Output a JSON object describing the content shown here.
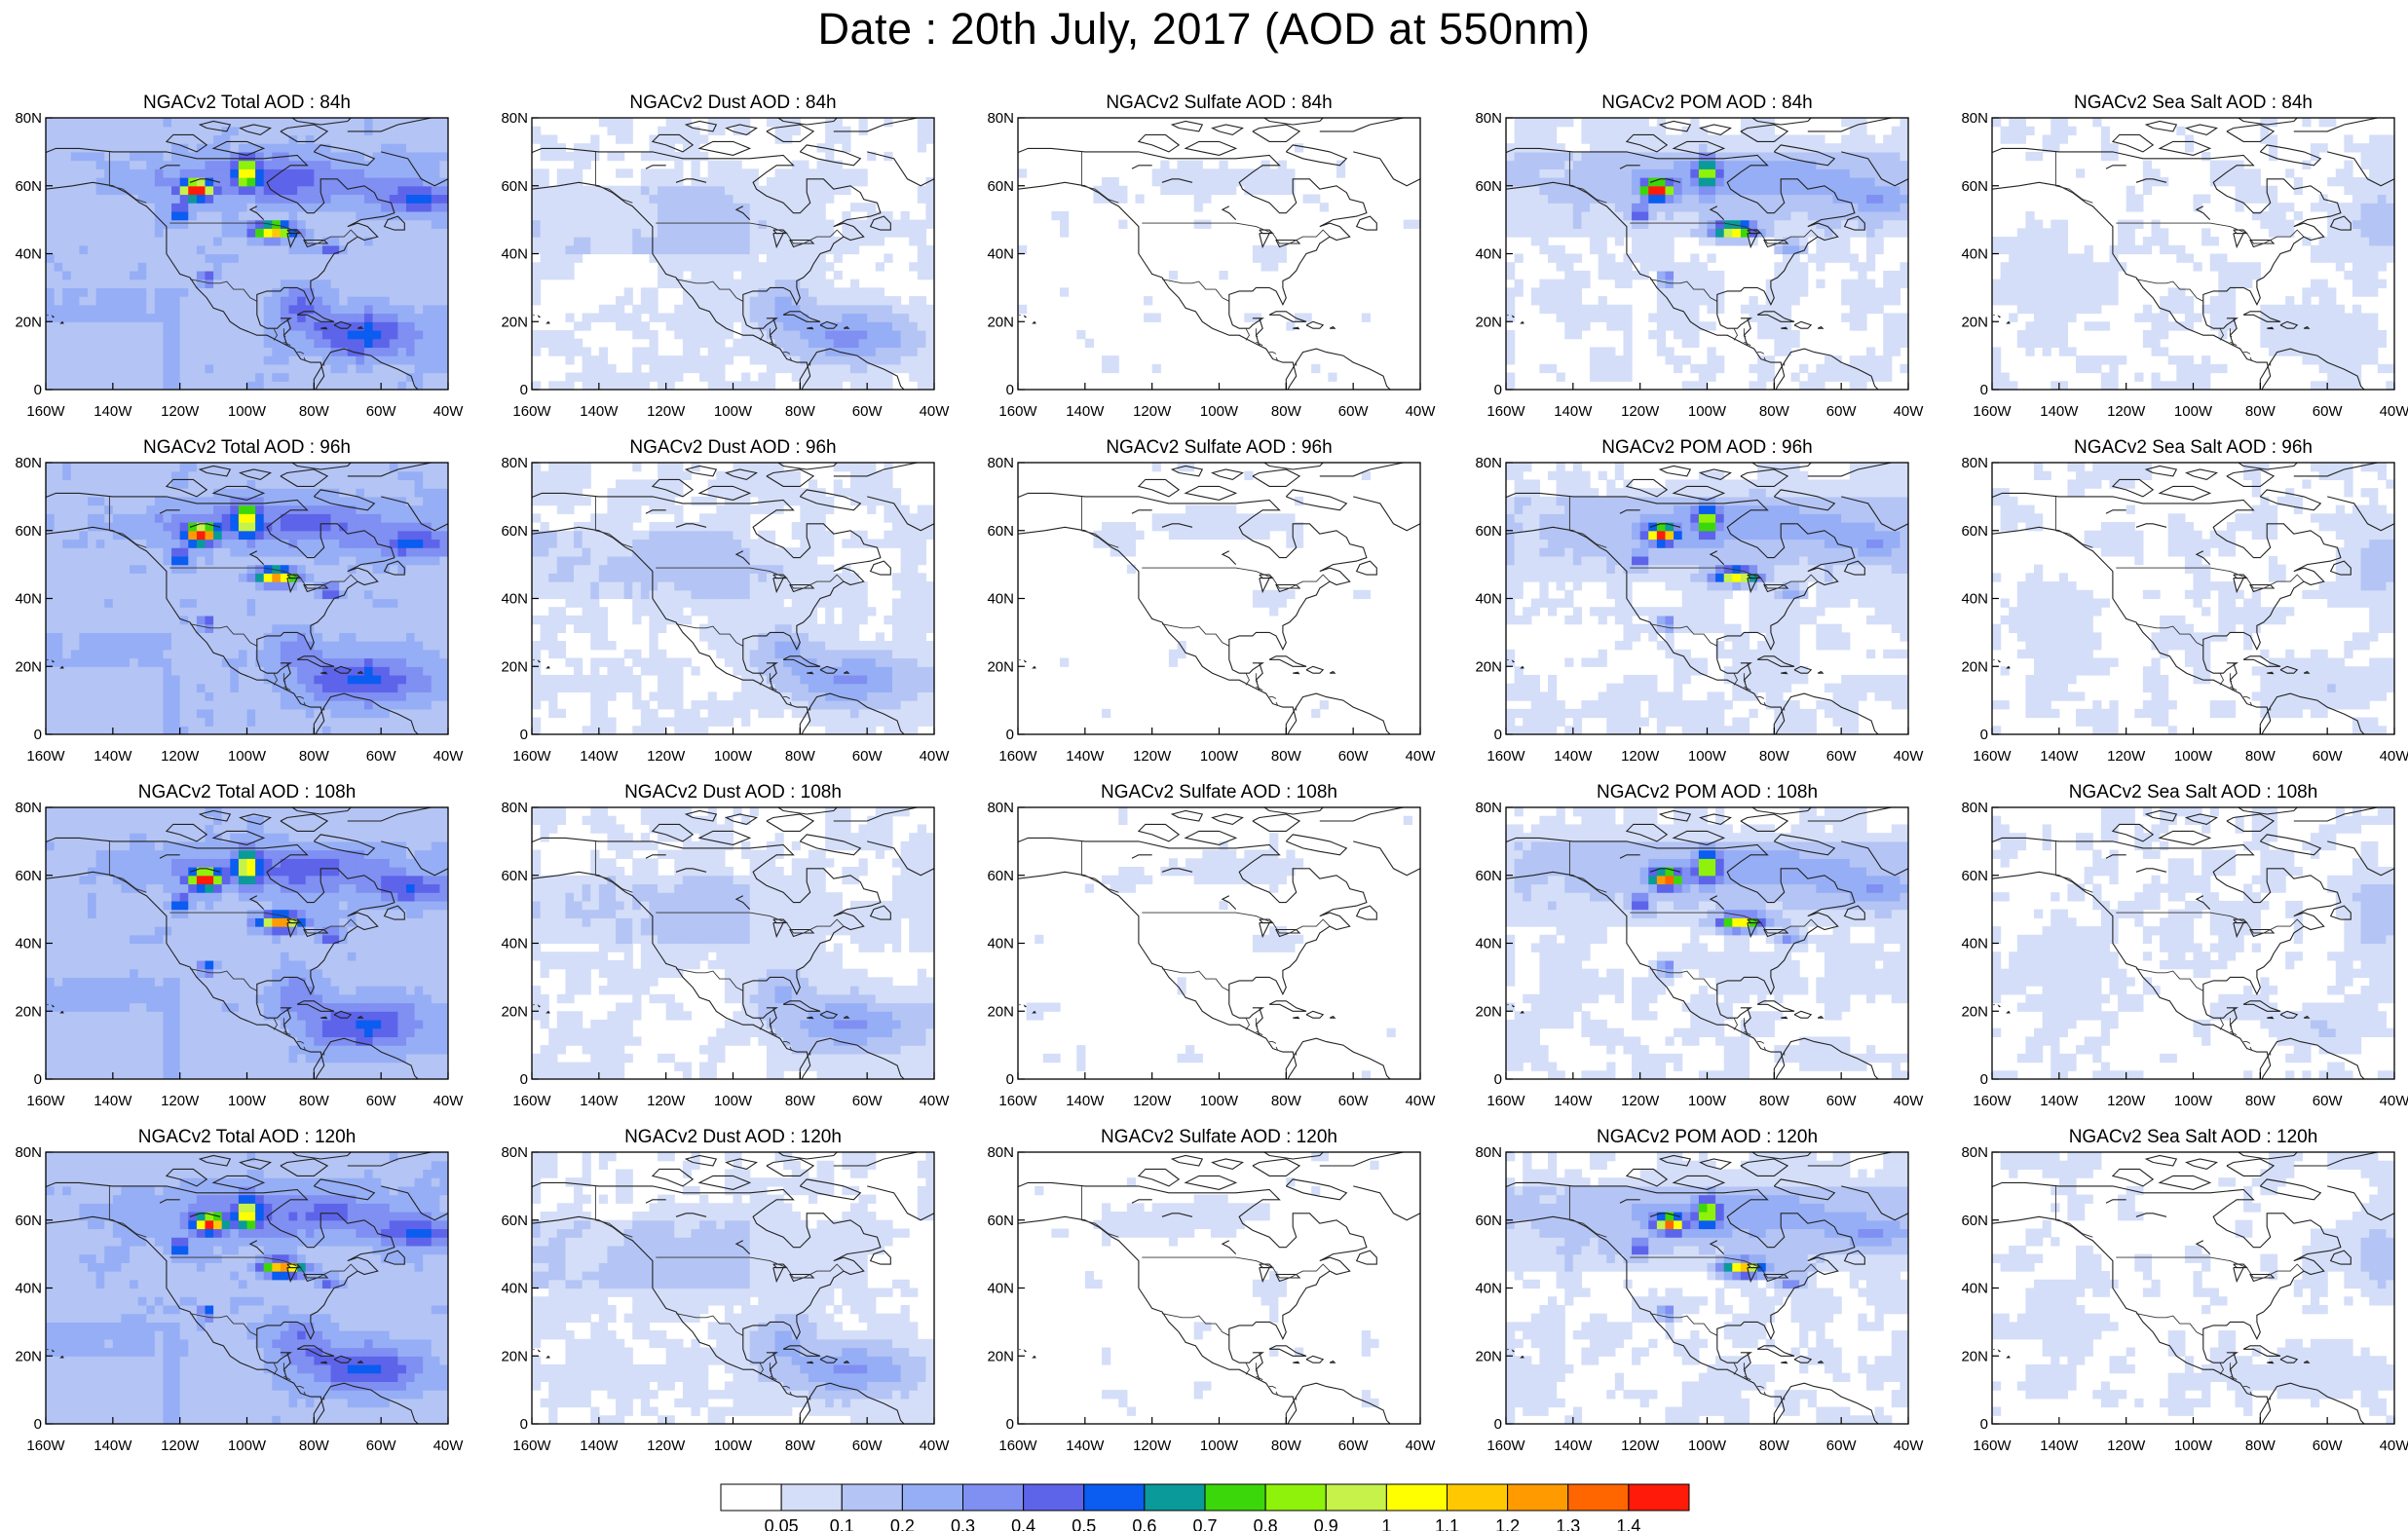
{
  "figure": {
    "title": "Date : 20th July, 2017 (AOD at 550nm)"
  },
  "panels": [
    {
      "title": "NGACv2 Total AOD : 84h",
      "species": "total",
      "hour": 84
    },
    {
      "title": "NGACv2 Dust AOD : 84h",
      "species": "dust",
      "hour": 84
    },
    {
      "title": "NGACv2 Sulfate AOD : 84h",
      "species": "sulfate",
      "hour": 84
    },
    {
      "title": "NGACv2 POM AOD : 84h",
      "species": "pom",
      "hour": 84
    },
    {
      "title": "NGACv2 Sea Salt AOD : 84h",
      "species": "seasalt",
      "hour": 84
    },
    {
      "title": "NGACv2 Total AOD : 96h",
      "species": "total",
      "hour": 96
    },
    {
      "title": "NGACv2 Dust AOD : 96h",
      "species": "dust",
      "hour": 96
    },
    {
      "title": "NGACv2 Sulfate AOD : 96h",
      "species": "sulfate",
      "hour": 96
    },
    {
      "title": "NGACv2 POM AOD : 96h",
      "species": "pom",
      "hour": 96
    },
    {
      "title": "NGACv2 Sea Salt AOD : 96h",
      "species": "seasalt",
      "hour": 96
    },
    {
      "title": "NGACv2 Total AOD : 108h",
      "species": "total",
      "hour": 108
    },
    {
      "title": "NGACv2 Dust AOD : 108h",
      "species": "dust",
      "hour": 108
    },
    {
      "title": "NGACv2 Sulfate AOD : 108h",
      "species": "sulfate",
      "hour": 108
    },
    {
      "title": "NGACv2 POM AOD : 108h",
      "species": "pom",
      "hour": 108
    },
    {
      "title": "NGACv2 Sea Salt AOD : 108h",
      "species": "seasalt",
      "hour": 108
    },
    {
      "title": "NGACv2 Total AOD : 120h",
      "species": "total",
      "hour": 120
    },
    {
      "title": "NGACv2 Dust AOD : 120h",
      "species": "dust",
      "hour": 120
    },
    {
      "title": "NGACv2 Sulfate AOD : 120h",
      "species": "sulfate",
      "hour": 120
    },
    {
      "title": "NGACv2 POM AOD : 120h",
      "species": "pom",
      "hour": 120
    },
    {
      "title": "NGACv2 Sea Salt  AOD : 120h",
      "species": "seasalt",
      "hour": 120
    }
  ],
  "axes": {
    "lat_ticks": [
      "80N",
      "60N",
      "40N",
      "20N",
      "0"
    ],
    "lat_values": [
      80,
      60,
      40,
      20,
      0
    ],
    "lon_ticks": [
      "160W",
      "140W",
      "120W",
      "100W",
      "80W",
      "60W",
      "40W"
    ],
    "lon_values": [
      -160,
      -140,
      -120,
      -100,
      -80,
      -60,
      -40
    ],
    "lon_range": [
      -160,
      -40
    ],
    "lat_range": [
      0,
      80
    ]
  },
  "colorbar": {
    "labels": [
      "0.05",
      "0.1",
      "0.2",
      "0.3",
      "0.4",
      "0.5",
      "0.6",
      "0.7",
      "0.8",
      "0.9",
      "1",
      "1.1",
      "1.2",
      "1.3",
      "1.4"
    ],
    "colors": [
      "#ffffff",
      "#d4def8",
      "#b4c4f4",
      "#96aef5",
      "#7f8ff2",
      "#5d64ea",
      "#0b5cf0",
      "#0a9a9a",
      "#3cd70a",
      "#8ef20a",
      "#c6f24a",
      "#ffff00",
      "#ffc800",
      "#ff9b00",
      "#ff6600",
      "#ff1a0a"
    ]
  }
}
